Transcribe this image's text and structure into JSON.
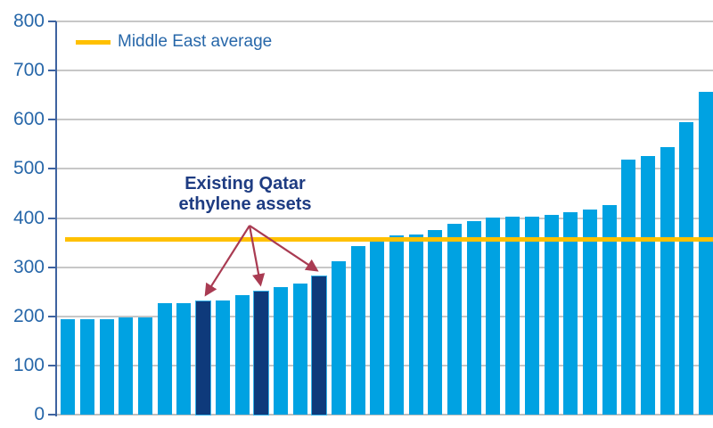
{
  "chart_data": {
    "type": "bar",
    "title": "",
    "xlabel": "",
    "ylabel": "",
    "categories": [],
    "values": [
      195,
      195,
      195,
      198,
      198,
      226,
      226,
      230,
      233,
      243,
      251,
      259,
      267,
      281,
      312,
      342,
      354,
      364,
      366,
      375,
      388,
      393,
      401,
      403,
      403,
      406,
      412,
      417,
      426,
      518,
      527,
      544,
      595,
      656
    ],
    "highlight_indices": [
      7,
      10,
      13
    ],
    "average_line": {
      "label": "Middle East average",
      "value": 357
    },
    "annotation": {
      "line1": "Existing Qatar",
      "line2": "ethylene assets",
      "points_to": "three highlighted dark navy bars"
    },
    "y_axis": {
      "min": 0,
      "max": 800,
      "step": 100,
      "tick_labels": [
        "0",
        "100",
        "200",
        "300",
        "400",
        "500",
        "600",
        "700",
        "800"
      ]
    },
    "legend_position": "top-left",
    "grid": true,
    "colors": {
      "bar": "#00a2e2",
      "bar_highlight": "#0e3a7b",
      "average_line": "#ffc000",
      "axis_text": "#2767a9",
      "axis_line": "#3e63a0",
      "gridline": "#c7c7c7",
      "annotation_text": "#1e3c82",
      "arrow": "#a93b52"
    }
  }
}
